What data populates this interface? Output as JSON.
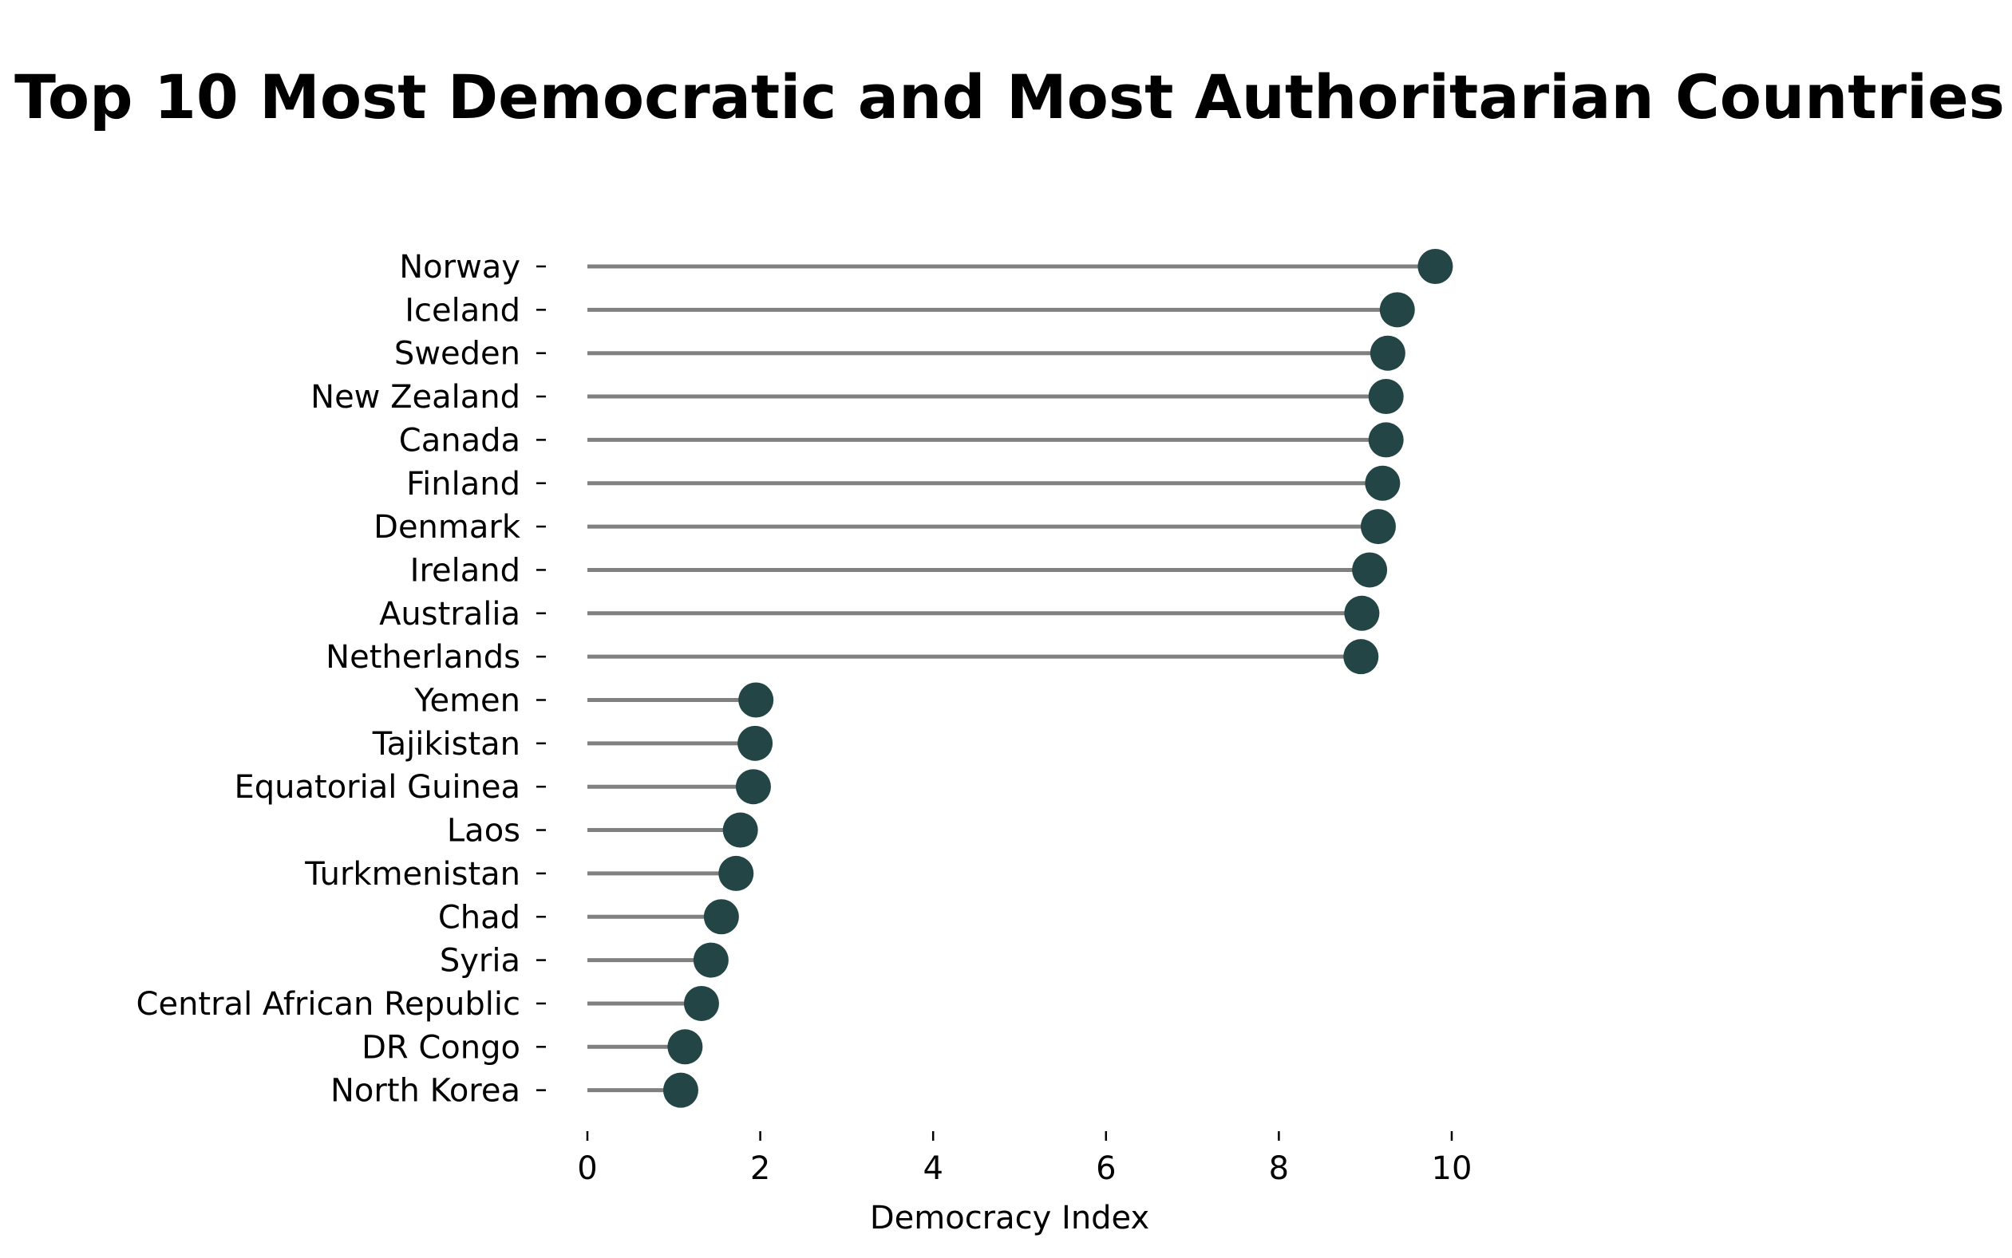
{
  "chart_data": {
    "type": "lollipop",
    "title": "Top 10 Most Democratic and Most Authoritarian Countries",
    "xlabel": "Democracy Index",
    "ylabel": "",
    "xlim": [
      0,
      10
    ],
    "xticks": [
      0,
      2,
      4,
      6,
      8,
      10
    ],
    "xtick_labels": [
      "0",
      "2",
      "4",
      "6",
      "8",
      "10"
    ],
    "grid": false,
    "legend": "none",
    "colors": {
      "stem": "#808080",
      "marker": "#234545"
    },
    "categories": [
      "Norway",
      "Iceland",
      "Sweden",
      "New Zealand",
      "Canada",
      "Finland",
      "Denmark",
      "Ireland",
      "Australia",
      "Netherlands",
      "Yemen",
      "Tajikistan",
      "Equatorial Guinea",
      "Laos",
      "Turkmenistan",
      "Chad",
      "Syria",
      "Central African Republic",
      "DR Congo",
      "North Korea"
    ],
    "values": [
      9.81,
      9.37,
      9.26,
      9.24,
      9.24,
      9.2,
      9.15,
      9.05,
      8.96,
      8.95,
      1.95,
      1.94,
      1.92,
      1.77,
      1.72,
      1.55,
      1.43,
      1.32,
      1.13,
      1.08
    ]
  }
}
